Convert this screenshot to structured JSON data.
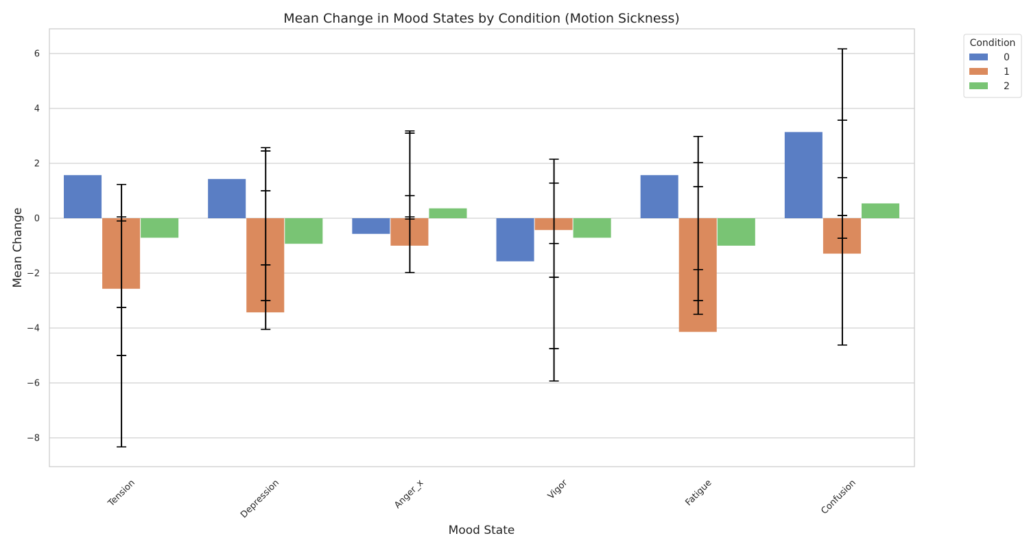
{
  "chart_data": {
    "type": "bar",
    "title": "Mean Change in Mood States by Condition (Motion Sickness)",
    "xlabel": "Mood State",
    "ylabel": "Mean Change",
    "categories": [
      "Tension",
      "Depression",
      "Anger_x",
      "Vigor",
      "Fatigue",
      "Confusion"
    ],
    "ylim": [
      -9.05,
      6.9
    ],
    "yticks": [
      -8,
      -6,
      -4,
      -2,
      0,
      2,
      4,
      6
    ],
    "ytick_labels": [
      "−8",
      "−6",
      "−4",
      "−2",
      "0",
      "2",
      "4",
      "6"
    ],
    "grid": true,
    "legend": {
      "title": "Condition",
      "placement": "outside top-right"
    },
    "series": [
      {
        "name": "0",
        "color": "#5a7ec4",
        "values": [
          1.57,
          1.43,
          -0.57,
          -1.57,
          1.57,
          3.14
        ]
      },
      {
        "name": "1",
        "color": "#db8a5d",
        "values": [
          -2.57,
          -3.43,
          -1.0,
          -0.43,
          -4.14,
          -1.29
        ]
      },
      {
        "name": "2",
        "color": "#79c474",
        "values": [
          -0.71,
          -0.93,
          0.36,
          -0.71,
          -1.0,
          0.54
        ]
      }
    ],
    "error_bars": [
      {
        "category": "Tension",
        "center": -2.57,
        "ci": [
          -8.33,
          1.23
        ]
      },
      {
        "category": "Tension",
        "center": -5.0,
        "ci": [
          -5.0,
          -5.0
        ]
      },
      {
        "category": "Tension",
        "center": -3.25,
        "ci": [
          -3.25,
          -3.25
        ]
      },
      {
        "category": "Tension",
        "center": 0.0,
        "ci": [
          -0.1,
          0.05
        ]
      },
      {
        "category": "Depression",
        "center": -1.0,
        "ci": [
          -4.05,
          2.57
        ]
      },
      {
        "category": "Depression",
        "center": 1.0,
        "ci": [
          1.0,
          1.0
        ]
      },
      {
        "category": "Depression",
        "center": -1.7,
        "ci": [
          -1.7,
          -1.7
        ]
      },
      {
        "category": "Depression",
        "center": -3.0,
        "ci": [
          -3.0,
          -3.0
        ]
      },
      {
        "category": "Depression",
        "center": 2.45,
        "ci": [
          2.45,
          2.45
        ]
      },
      {
        "category": "Anger_x",
        "center": 0.6,
        "ci": [
          -1.98,
          3.18
        ]
      },
      {
        "category": "Anger_x",
        "center": 0.82,
        "ci": [
          0.82,
          0.82
        ]
      },
      {
        "category": "Anger_x",
        "center": 0.0,
        "ci": [
          -0.03,
          0.05
        ]
      },
      {
        "category": "Anger_x",
        "center": 3.1,
        "ci": [
          3.1,
          3.1
        ]
      },
      {
        "category": "Vigor",
        "center": -1.9,
        "ci": [
          -5.93,
          2.15
        ]
      },
      {
        "category": "Vigor",
        "center": 1.28,
        "ci": [
          1.28,
          1.28
        ]
      },
      {
        "category": "Vigor",
        "center": -0.92,
        "ci": [
          -0.92,
          -0.92
        ]
      },
      {
        "category": "Vigor",
        "center": -2.15,
        "ci": [
          -2.15,
          -2.15
        ]
      },
      {
        "category": "Vigor",
        "center": -4.75,
        "ci": [
          -4.75,
          -4.75
        ]
      },
      {
        "category": "Fatigue",
        "center": -0.25,
        "ci": [
          -3.5,
          2.98
        ]
      },
      {
        "category": "Fatigue",
        "center": 2.03,
        "ci": [
          2.03,
          2.03
        ]
      },
      {
        "category": "Fatigue",
        "center": 1.15,
        "ci": [
          1.15,
          1.15
        ]
      },
      {
        "category": "Fatigue",
        "center": -1.87,
        "ci": [
          -1.87,
          -1.87
        ]
      },
      {
        "category": "Fatigue",
        "center": -3.0,
        "ci": [
          -3.0,
          -3.0
        ]
      },
      {
        "category": "Confusion",
        "center": 0.78,
        "ci": [
          -4.62,
          6.17
        ]
      },
      {
        "category": "Confusion",
        "center": 3.57,
        "ci": [
          3.57,
          3.57
        ]
      },
      {
        "category": "Confusion",
        "center": 1.48,
        "ci": [
          1.48,
          1.48
        ]
      },
      {
        "category": "Confusion",
        "center": 0.1,
        "ci": [
          0.1,
          0.1
        ]
      },
      {
        "category": "Confusion",
        "center": -0.73,
        "ci": [
          -0.73,
          -0.73
        ]
      }
    ]
  }
}
